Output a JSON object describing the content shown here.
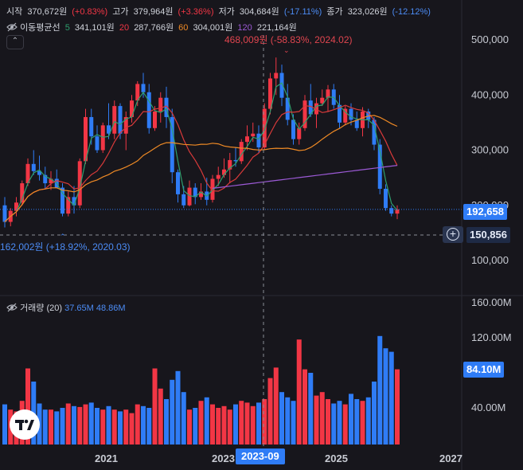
{
  "header": {
    "open_label": "시작",
    "open_value": "370,672원",
    "open_change": "(+0.83%)",
    "high_label": "고가",
    "high_value": "379,964원",
    "high_change": "(+3.36%)",
    "low_label": "저가",
    "low_value": "304,684원",
    "low_change": "(-17.11%)",
    "close_label": "종가",
    "close_value": "323,026원",
    "close_change": "(-12.12%)",
    "ma_label": "이동평균선",
    "ma5_period": "5",
    "ma5_value": "341,101원",
    "ma20_period": "20",
    "ma20_value": "287,766원",
    "ma60_period": "60",
    "ma60_value": "304,001원",
    "ma120_period": "120",
    "ma120_value": "221,164원",
    "collapse_icon": "chevron-up-icon"
  },
  "volume_header": {
    "label": "거래량 (20)",
    "v1": "37.65M",
    "v2": "48.86M"
  },
  "annotations": {
    "max_label": "468,009원 (-58.83%, 2024.02)",
    "min_label": "162,002원 (+18.92%, 2020.03)"
  },
  "price_tags": {
    "last_price": "192,658",
    "crosshair_price": "150,856",
    "volume_last": "84.10M",
    "crosshair_date": "2023-09"
  },
  "colors": {
    "up": "#f23645",
    "down": "#2f7cf6",
    "ma5": "#2e9e6e",
    "ma20": "#d83a3a",
    "ma60": "#ef8a25",
    "ma120": "#9c5ad6",
    "background": "#17161c"
  },
  "chart_data": [
    {
      "type": "candlestick",
      "interval": "monthly",
      "y_axis": {
        "ticks": [
          100000,
          200000,
          300000,
          400000,
          500000
        ],
        "tick_labels": [
          "100,000",
          "200,000",
          "300,000",
          "400,000",
          "500,000"
        ]
      },
      "x_axis": {
        "tick_labels": [
          "2021",
          "2023",
          "2025",
          "2027"
        ]
      },
      "ohlc": [
        [
          200000,
          215000,
          160000,
          170000
        ],
        [
          170000,
          195000,
          162002,
          190000
        ],
        [
          190000,
          215000,
          180000,
          205000
        ],
        [
          205000,
          245000,
          200000,
          240000
        ],
        [
          240000,
          285000,
          235000,
          275000
        ],
        [
          275000,
          300000,
          255000,
          262000
        ],
        [
          262000,
          290000,
          245000,
          255000
        ],
        [
          255000,
          270000,
          230000,
          240000
        ],
        [
          240000,
          262000,
          228000,
          248000
        ],
        [
          248000,
          265000,
          235000,
          232000
        ],
        [
          232000,
          240000,
          180000,
          185000
        ],
        [
          185000,
          225000,
          180000,
          215000
        ],
        [
          215000,
          235000,
          185000,
          200000
        ],
        [
          200000,
          285000,
          195000,
          280000
        ],
        [
          280000,
          375000,
          275000,
          360000
        ],
        [
          360000,
          375000,
          310000,
          325000
        ],
        [
          325000,
          345000,
          295000,
          300000
        ],
        [
          300000,
          350000,
          295000,
          345000
        ],
        [
          345000,
          385000,
          320000,
          330000
        ],
        [
          330000,
          390000,
          320000,
          380000
        ],
        [
          380000,
          385000,
          320000,
          330000
        ],
        [
          330000,
          370000,
          300000,
          360000
        ],
        [
          360000,
          400000,
          350000,
          390000
        ],
        [
          390000,
          425000,
          380000,
          420000
        ],
        [
          420000,
          440000,
          395000,
          405000
        ],
        [
          405000,
          420000,
          330000,
          340000
        ],
        [
          340000,
          380000,
          335000,
          370000
        ],
        [
          370000,
          405000,
          350000,
          395000
        ],
        [
          395000,
          415000,
          340000,
          360000
        ],
        [
          360000,
          375000,
          240000,
          260000
        ],
        [
          260000,
          265000,
          205000,
          220000
        ],
        [
          220000,
          235000,
          195000,
          200000
        ],
        [
          200000,
          245000,
          198000,
          232000
        ],
        [
          232000,
          240000,
          202000,
          215000
        ],
        [
          215000,
          240000,
          210000,
          225000
        ],
        [
          225000,
          250000,
          200000,
          210000
        ],
        [
          210000,
          255000,
          205000,
          248000
        ],
        [
          248000,
          270000,
          235000,
          255000
        ],
        [
          255000,
          285000,
          250000,
          265000
        ],
        [
          265000,
          295000,
          240000,
          282000
        ],
        [
          282000,
          305000,
          270000,
          280000
        ],
        [
          280000,
          320000,
          275000,
          315000
        ],
        [
          315000,
          345000,
          300000,
          325000
        ],
        [
          325000,
          350000,
          315000,
          330000
        ],
        [
          330000,
          345000,
          295000,
          305000
        ],
        [
          305000,
          385000,
          300000,
          375000
        ],
        [
          375000,
          440000,
          365000,
          430000
        ],
        [
          430000,
          468009,
          400000,
          440000
        ],
        [
          440000,
          455000,
          380000,
          395000
        ],
        [
          395000,
          420000,
          345000,
          355000
        ],
        [
          355000,
          365000,
          310000,
          320000
        ],
        [
          320000,
          350000,
          310000,
          340000
        ],
        [
          340000,
          400000,
          335000,
          390000
        ],
        [
          390000,
          420000,
          360000,
          365000
        ],
        [
          365000,
          395000,
          340000,
          385000
        ],
        [
          385000,
          410000,
          380000,
          395000
        ],
        [
          395000,
          418000,
          370000,
          410000
        ],
        [
          410000,
          420000,
          375000,
          382000
        ],
        [
          382000,
          400000,
          340000,
          350000
        ],
        [
          350000,
          380000,
          345000,
          375000
        ],
        [
          375000,
          385000,
          345000,
          355000
        ],
        [
          355000,
          370000,
          335000,
          340000
        ],
        [
          340000,
          378000,
          325000,
          370000
        ],
        [
          370000,
          375000,
          340000,
          355000
        ],
        [
          355000,
          360000,
          300000,
          310000
        ],
        [
          310000,
          320000,
          220000,
          230000
        ],
        [
          230000,
          238000,
          190000,
          195000
        ],
        [
          195000,
          200000,
          180000,
          185000
        ],
        [
          185000,
          200000,
          175000,
          192658
        ]
      ],
      "volume_millions": [
        44,
        38,
        36,
        48,
        85,
        70,
        45,
        38,
        38,
        36,
        40,
        45,
        42,
        41,
        44,
        46,
        40,
        38,
        42,
        38,
        36,
        38,
        34,
        44,
        42,
        40,
        85,
        62,
        50,
        72,
        82,
        58,
        38,
        40,
        48,
        52,
        44,
        40,
        42,
        38,
        44,
        48,
        46,
        42,
        46,
        50,
        74,
        86,
        58,
        52,
        48,
        118,
        84,
        80,
        54,
        58,
        50,
        45,
        48,
        44,
        56,
        50,
        48,
        52,
        70,
        122,
        108,
        104,
        84
      ],
      "moving_averages": [
        "MA5",
        "MA20",
        "MA60",
        "MA120"
      ]
    }
  ]
}
